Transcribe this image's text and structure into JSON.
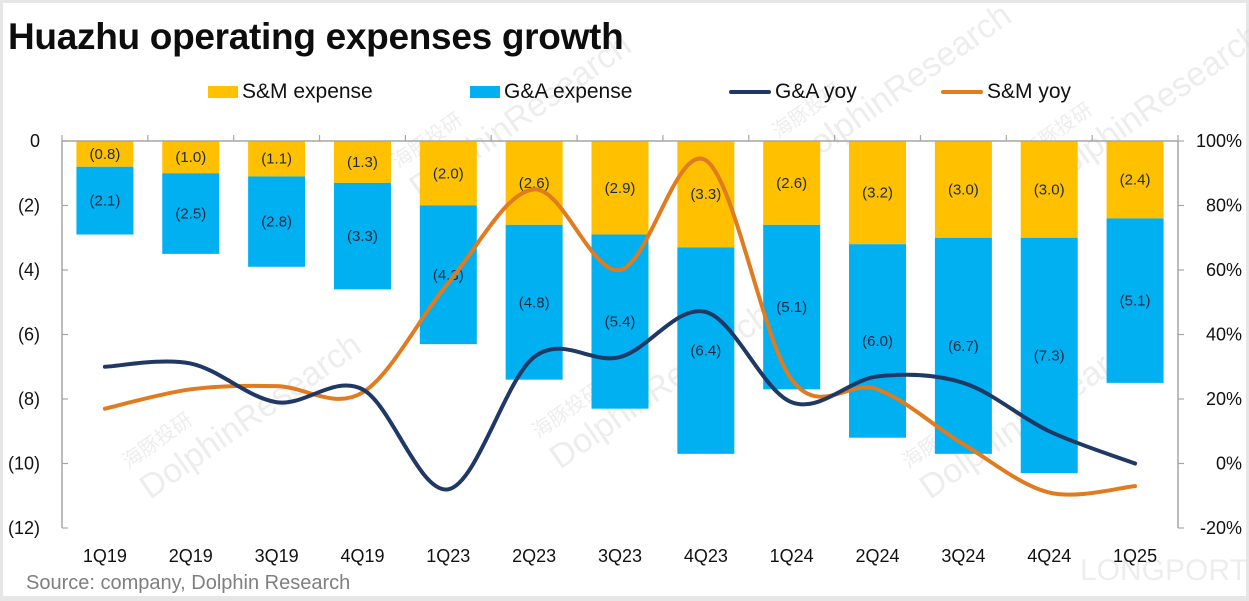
{
  "title": "Huazhu operating expenses growth",
  "source": "Source: company, Dolphin Research",
  "watermark": {
    "text": "DolphinResearch",
    "cn": "海豚投研",
    "brand": "LONGPORT"
  },
  "colors": {
    "sm_expense": "#ffc000",
    "ga_expense": "#00b0f0",
    "ga_yoy": "#1f3864",
    "sm_yoy": "#e07b20",
    "axis": "#a6a6a6"
  },
  "chart_data": {
    "type": "bar",
    "title": "Huazhu operating expenses growth",
    "xlabel": "",
    "ylabel": "",
    "categories": [
      "1Q19",
      "2Q19",
      "3Q19",
      "4Q19",
      "1Q23",
      "2Q23",
      "3Q23",
      "4Q23",
      "1Q24",
      "2Q24",
      "3Q24",
      "4Q24",
      "1Q25"
    ],
    "legend_position": "top",
    "grid": false,
    "left_axis": {
      "ylim": [
        -12,
        0
      ],
      "ticks": [
        0,
        -2,
        -4,
        -6,
        -8,
        -10,
        -12
      ],
      "tick_labels": [
        "0",
        "(2)",
        "(4)",
        "(6)",
        "(8)",
        "(10)",
        "(12)"
      ]
    },
    "right_axis": {
      "ylim": [
        -20,
        100
      ],
      "ticks": [
        100,
        80,
        60,
        40,
        20,
        0,
        -20
      ],
      "tick_labels": [
        "100%",
        "80%",
        "60%",
        "40%",
        "20%",
        "0%",
        "-20%"
      ]
    },
    "series": [
      {
        "name": "S&M expense",
        "type": "bar",
        "stack": true,
        "axis": "left",
        "values": [
          -0.8,
          -1.0,
          -1.1,
          -1.3,
          -2.0,
          -2.6,
          -2.9,
          -3.3,
          -2.6,
          -3.2,
          -3.0,
          -3.0,
          -2.4
        ],
        "labels": [
          "(0.8)",
          "(1.0)",
          "(1.1)",
          "(1.3)",
          "(2.0)",
          "(2.6)",
          "(2.9)",
          "(3.3)",
          "(2.6)",
          "(3.2)",
          "(3.0)",
          "(3.0)",
          "(2.4)"
        ]
      },
      {
        "name": "G&A expense",
        "type": "bar",
        "stack": true,
        "axis": "left",
        "values": [
          -2.1,
          -2.5,
          -2.8,
          -3.3,
          -4.3,
          -4.8,
          -5.4,
          -6.4,
          -5.1,
          -6.0,
          -6.7,
          -7.3,
          -5.1
        ],
        "labels": [
          "(2.1)",
          "(2.5)",
          "(2.8)",
          "(3.3)",
          "(4.3)",
          "(4.8)",
          "(5.4)",
          "(6.4)",
          "(5.1)",
          "(6.0)",
          "(6.7)",
          "(7.3)",
          "(5.1)"
        ]
      },
      {
        "name": "G&A yoy",
        "type": "line",
        "axis": "right",
        "unit": "%",
        "values": [
          30,
          31,
          19,
          23,
          -8,
          33,
          33,
          47,
          19,
          27,
          25,
          10,
          0
        ]
      },
      {
        "name": "S&M yoy",
        "type": "line",
        "axis": "right",
        "unit": "%",
        "values": [
          17,
          23,
          24,
          22,
          56,
          85,
          60,
          94,
          26,
          23,
          6,
          -9,
          -7
        ]
      }
    ]
  }
}
